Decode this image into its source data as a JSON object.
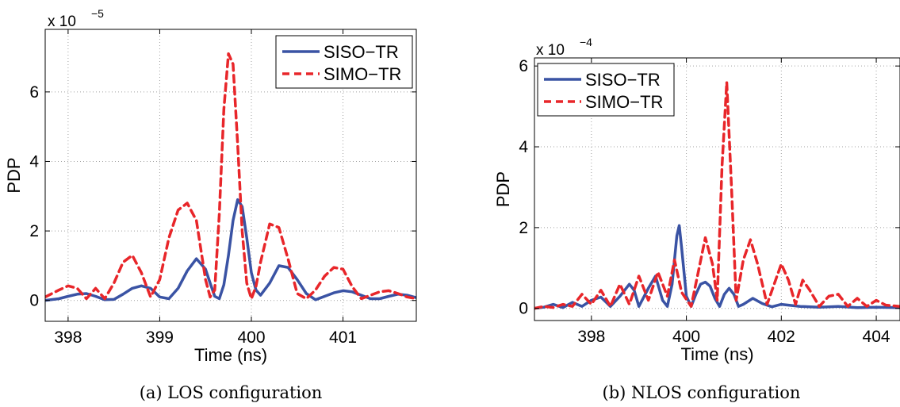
{
  "chart_data": [
    {
      "type": "line",
      "caption": "(a)  LOS configuration",
      "xlabel": "Time (ns)",
      "ylabel": "PDP",
      "y_exponent": "x 10",
      "y_exponent_power": "−5",
      "xlim": [
        397.75,
        401.8
      ],
      "ylim": [
        -0.6,
        7.8
      ],
      "xticks": [
        398,
        399,
        400,
        401
      ],
      "xtick_labels": [
        "398",
        "399",
        "400",
        "401"
      ],
      "yticks": [
        0,
        2,
        4,
        6
      ],
      "ytick_labels": [
        "0",
        "2",
        "4",
        "6"
      ],
      "grid": true,
      "legend_position": "top-right",
      "series": [
        {
          "name": "SISO−TR",
          "color": "#3a53a4",
          "style": "solid",
          "x": [
            397.75,
            397.9,
            398.0,
            398.1,
            398.2,
            398.3,
            398.4,
            398.5,
            398.6,
            398.7,
            398.8,
            398.9,
            399.0,
            399.1,
            399.2,
            399.3,
            399.4,
            399.5,
            399.55,
            399.6,
            399.65,
            399.7,
            399.75,
            399.8,
            399.85,
            399.9,
            399.95,
            400.0,
            400.05,
            400.1,
            400.2,
            400.3,
            400.4,
            400.5,
            400.6,
            400.7,
            400.8,
            400.9,
            401.0,
            401.1,
            401.2,
            401.3,
            401.4,
            401.5,
            401.6,
            401.7,
            401.8
          ],
          "y": [
            0.0,
            0.05,
            0.12,
            0.18,
            0.2,
            0.12,
            0.02,
            0.03,
            0.18,
            0.35,
            0.42,
            0.35,
            0.1,
            0.05,
            0.35,
            0.85,
            1.2,
            0.9,
            0.5,
            0.12,
            0.05,
            0.45,
            1.3,
            2.3,
            2.9,
            2.7,
            1.8,
            0.8,
            0.3,
            0.15,
            0.5,
            1.0,
            0.95,
            0.6,
            0.2,
            0.02,
            0.12,
            0.22,
            0.28,
            0.25,
            0.15,
            0.05,
            0.05,
            0.12,
            0.18,
            0.15,
            0.08
          ]
        },
        {
          "name": "SIMO−TR",
          "color": "#e8262a",
          "style": "dashed",
          "x": [
            397.75,
            397.9,
            398.0,
            398.1,
            398.2,
            398.3,
            398.4,
            398.5,
            398.6,
            398.7,
            398.8,
            398.9,
            399.0,
            399.1,
            399.2,
            399.3,
            399.4,
            399.5,
            399.55,
            399.6,
            399.65,
            399.7,
            399.75,
            399.8,
            399.85,
            399.9,
            399.95,
            400.0,
            400.05,
            400.1,
            400.2,
            400.3,
            400.4,
            400.5,
            400.6,
            400.7,
            400.8,
            400.9,
            401.0,
            401.1,
            401.2,
            401.3,
            401.4,
            401.5,
            401.6,
            401.7,
            401.8
          ],
          "y": [
            0.1,
            0.3,
            0.42,
            0.35,
            0.05,
            0.35,
            0.05,
            0.5,
            1.1,
            1.3,
            0.8,
            0.1,
            0.6,
            1.8,
            2.6,
            2.8,
            2.3,
            0.6,
            0.1,
            0.3,
            2.5,
            5.5,
            7.1,
            6.8,
            4.5,
            2.0,
            0.5,
            0.05,
            0.4,
            1.1,
            2.2,
            2.1,
            1.2,
            0.2,
            0.05,
            0.3,
            0.7,
            0.95,
            0.9,
            0.4,
            0.05,
            0.15,
            0.25,
            0.28,
            0.2,
            0.1,
            0.05
          ]
        }
      ]
    },
    {
      "type": "line",
      "caption": "(b)  NLOS configuration",
      "xlabel": "Time (ns)",
      "ylabel": "PDP",
      "y_exponent": "x 10",
      "y_exponent_power": "−4",
      "xlim": [
        396.8,
        404.5
      ],
      "ylim": [
        -0.3,
        6.2
      ],
      "xticks": [
        398,
        400,
        402,
        404
      ],
      "xtick_labels": [
        "398",
        "400",
        "402",
        "404"
      ],
      "yticks": [
        0,
        2,
        4,
        6
      ],
      "ytick_labels": [
        "0",
        "2",
        "4",
        "6"
      ],
      "grid": true,
      "legend_position": "top-left",
      "series": [
        {
          "name": "SISO−TR",
          "color": "#3a53a4",
          "style": "solid",
          "x": [
            396.8,
            397.0,
            397.2,
            397.4,
            397.6,
            397.8,
            398.0,
            398.2,
            398.4,
            398.6,
            398.8,
            398.9,
            399.0,
            399.2,
            399.35,
            399.5,
            399.6,
            399.7,
            399.8,
            399.85,
            399.9,
            400.0,
            400.1,
            400.2,
            400.3,
            400.4,
            400.5,
            400.6,
            400.7,
            400.8,
            400.9,
            401.0,
            401.1,
            401.2,
            401.4,
            401.6,
            401.8,
            402.0,
            402.4,
            402.8,
            403.2,
            403.6,
            404.0,
            404.5
          ],
          "y": [
            0.0,
            0.03,
            0.1,
            0.02,
            0.15,
            0.05,
            0.2,
            0.28,
            0.05,
            0.3,
            0.6,
            0.45,
            0.05,
            0.5,
            0.8,
            0.2,
            0.05,
            0.6,
            1.8,
            2.05,
            1.5,
            0.3,
            0.05,
            0.35,
            0.6,
            0.65,
            0.55,
            0.25,
            0.05,
            0.35,
            0.5,
            0.35,
            0.05,
            0.1,
            0.25,
            0.12,
            0.04,
            0.1,
            0.05,
            0.03,
            0.05,
            0.02,
            0.03,
            0.02
          ]
        },
        {
          "name": "SIMO−TR",
          "color": "#e8262a",
          "style": "dashed",
          "x": [
            396.8,
            397.0,
            397.2,
            397.4,
            397.6,
            397.8,
            398.0,
            398.2,
            398.4,
            398.6,
            398.8,
            399.0,
            399.2,
            399.4,
            399.6,
            399.75,
            399.9,
            400.1,
            400.25,
            400.4,
            400.55,
            400.65,
            400.75,
            400.85,
            400.95,
            401.05,
            401.2,
            401.35,
            401.5,
            401.7,
            401.85,
            402.0,
            402.15,
            402.3,
            402.45,
            402.6,
            402.8,
            403.0,
            403.2,
            403.4,
            403.6,
            403.8,
            404.0,
            404.2,
            404.5
          ],
          "y": [
            0.0,
            0.05,
            0.02,
            0.1,
            0.05,
            0.35,
            0.1,
            0.45,
            0.05,
            0.6,
            0.1,
            0.8,
            0.2,
            0.9,
            0.3,
            1.2,
            0.4,
            0.05,
            0.9,
            1.75,
            1.1,
            0.2,
            3.5,
            5.6,
            3.0,
            0.2,
            1.2,
            1.7,
            1.1,
            0.1,
            0.6,
            1.1,
            0.7,
            0.1,
            0.7,
            0.45,
            0.05,
            0.3,
            0.35,
            0.05,
            0.25,
            0.05,
            0.2,
            0.08,
            0.05
          ]
        }
      ]
    }
  ]
}
